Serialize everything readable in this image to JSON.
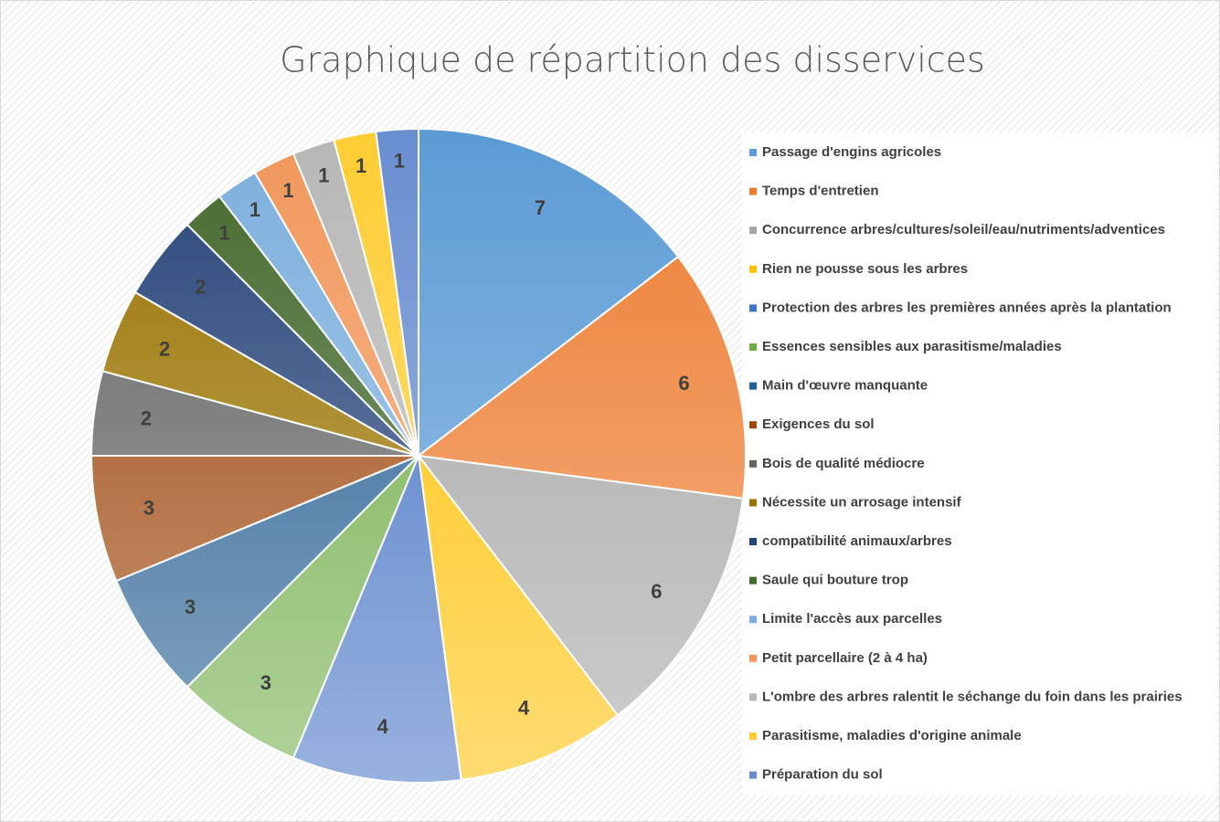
{
  "chart_data": {
    "type": "pie",
    "title": "Graphique de répartition des disservices",
    "categories": [
      "Passage d'engins agricoles",
      "Temps d'entretien",
      "Concurrence arbres/cultures/soleil/eau/nutriments/adventices",
      "Rien ne pousse sous les arbres",
      "Protection des arbres les premières années après la plantation",
      "Essences sensibles aux parasitisme/maladies",
      "Main d'œuvre manquante",
      "Exigences du sol",
      "Bois de qualité médiocre",
      "Nécessite un arrosage intensif",
      "compatibilité animaux/arbres",
      "Saule qui bouture trop",
      "Limite l'accès aux parcelles",
      "Petit parcellaire (2 à 4 ha)",
      "L'ombre des arbres ralentit le séchange du foin dans les prairies",
      "Parasitisme, maladies d'origine animale",
      "Préparation du sol"
    ],
    "values": [
      7,
      6,
      6,
      4,
      4,
      3,
      3,
      3,
      2,
      2,
      2,
      1,
      1,
      1,
      1,
      1,
      1
    ],
    "colors": [
      "#5b9bd5",
      "#ed7d31",
      "#a5a5a5",
      "#ffc000",
      "#4472c4",
      "#70ad47",
      "#255e91",
      "#9e480e",
      "#636363",
      "#997300",
      "#264478",
      "#43682b",
      "#7cafdd",
      "#f1975a",
      "#b7b7b7",
      "#ffcd33",
      "#698ed0"
    ],
    "legend": "right"
  }
}
